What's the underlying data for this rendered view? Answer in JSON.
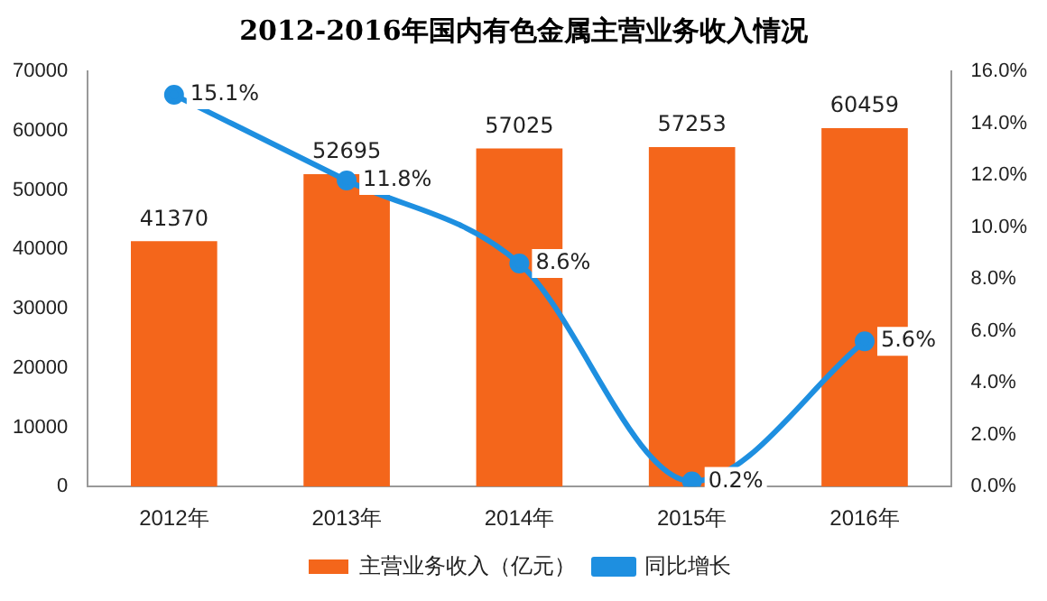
{
  "chart_data": {
    "type": "bar",
    "title": "2012-2016年国内有色金属主营业务收入情况",
    "categories": [
      "2012年",
      "2013年",
      "2014年",
      "2015年",
      "2016年"
    ],
    "series": [
      {
        "name": "主营业务收入（亿元）",
        "type": "bar",
        "color": "#f4661b",
        "values": [
          41370,
          52695,
          57025,
          57253,
          60459
        ]
      },
      {
        "name": "同比增长",
        "type": "line",
        "axis": "y2",
        "color": "#1e8fe0",
        "values": [
          15.1,
          11.8,
          8.6,
          0.2,
          5.6
        ],
        "value_labels": [
          "15.1%",
          "11.8%",
          "8.6%",
          "0.2%",
          "5.6%"
        ]
      }
    ],
    "ylim": [
      0,
      70000
    ],
    "yticks": [
      0,
      10000,
      20000,
      30000,
      40000,
      50000,
      60000,
      70000
    ],
    "y2lim": [
      0,
      16
    ],
    "y2ticks": [
      {
        "value": 0,
        "label": "0.0%"
      },
      {
        "value": 2,
        "label": "2.0%"
      },
      {
        "value": 4,
        "label": "4.0%"
      },
      {
        "value": 6,
        "label": "6.0%"
      },
      {
        "value": 8,
        "label": "8.0%"
      },
      {
        "value": 10,
        "label": "10.0%"
      },
      {
        "value": 12,
        "label": "12.0%"
      },
      {
        "value": 14,
        "label": "14.0%"
      },
      {
        "value": 16,
        "label": "16.0%"
      }
    ],
    "data_labels": true,
    "grid": false,
    "legend": "bottom",
    "marker": "circle"
  }
}
